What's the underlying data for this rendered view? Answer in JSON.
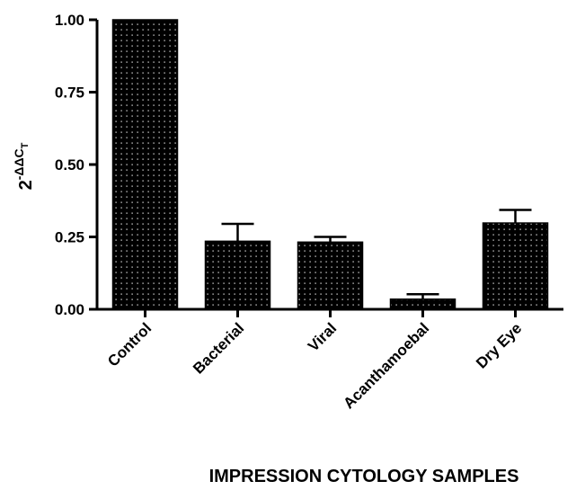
{
  "chart_data": {
    "type": "bar",
    "title": "",
    "xlabel": "IMPRESSION CYTOLOGY SAMPLES",
    "ylabel": {
      "base": "2",
      "exponent": "-ΔΔC",
      "exponent_subscript": "T"
    },
    "categories": [
      "Control",
      "Bacterial",
      "Viral",
      "Acanthamoebal",
      "Dry Eye"
    ],
    "values": [
      1.0,
      0.235,
      0.232,
      0.035,
      0.298
    ],
    "error_upper": [
      0.0,
      0.06,
      0.018,
      0.017,
      0.045
    ],
    "ylim": [
      0,
      1.0
    ],
    "yticks": [
      "0.00",
      "0.25",
      "0.50",
      "0.75",
      "1.00"
    ],
    "bar_color": "#000000",
    "bar_pattern": "white dotted",
    "grid": false,
    "legend": "none"
  }
}
